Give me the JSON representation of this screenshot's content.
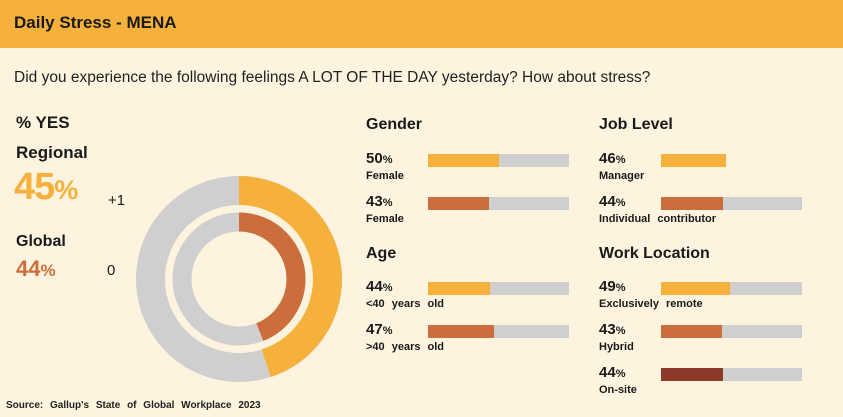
{
  "header": {
    "title": "Daily Stress - MENA"
  },
  "question": "Did you experience the following feelings A LOT OF THE DAY yesterday? How about stress?",
  "summary": {
    "yes_label": "% YES",
    "regional_label": "Regional",
    "regional_value": "45",
    "regional_change": "+1",
    "global_label": "Global",
    "global_value": "44",
    "global_change": "0"
  },
  "source": "Source: Gallup's State of Global Workplace 2023",
  "colors": {
    "header": "#f6b13c",
    "regional": "#f6b13c",
    "global": "#cc6e3b",
    "dark": "#8b3a2a",
    "track": "#cfcfcf",
    "background": "#fdf3df"
  },
  "chart_data": [
    {
      "type": "pie",
      "variant": "donut",
      "series": [
        {
          "name": "Regional",
          "value": 45
        },
        {
          "name": "Global",
          "value": 44
        }
      ],
      "max": 100
    },
    {
      "type": "bar",
      "title": "Gender",
      "categories": [
        "Female",
        "Female"
      ],
      "values": [
        50,
        43
      ],
      "colors": [
        "#f6b13c",
        "#cc6e3b"
      ],
      "max": 100
    },
    {
      "type": "bar",
      "title": "Age",
      "categories": [
        "<40 years old",
        ">40 years old"
      ],
      "values": [
        44,
        47
      ],
      "colors": [
        "#f6b13c",
        "#cc6e3b"
      ],
      "max": 100
    },
    {
      "type": "bar",
      "title": "Job Level",
      "categories": [
        "Manager",
        "Individual contributor"
      ],
      "values": [
        46,
        44
      ],
      "colors": [
        "#f6b13c",
        "#cc6e3b"
      ],
      "max": 100,
      "track": [
        false,
        true
      ]
    },
    {
      "type": "bar",
      "title": "Work Location",
      "categories": [
        "Exclusively remote",
        "Hybrid",
        "On-site"
      ],
      "values": [
        49,
        43,
        44
      ],
      "colors": [
        "#f6b13c",
        "#cc6e3b",
        "#8b3a2a"
      ],
      "max": 100
    }
  ]
}
